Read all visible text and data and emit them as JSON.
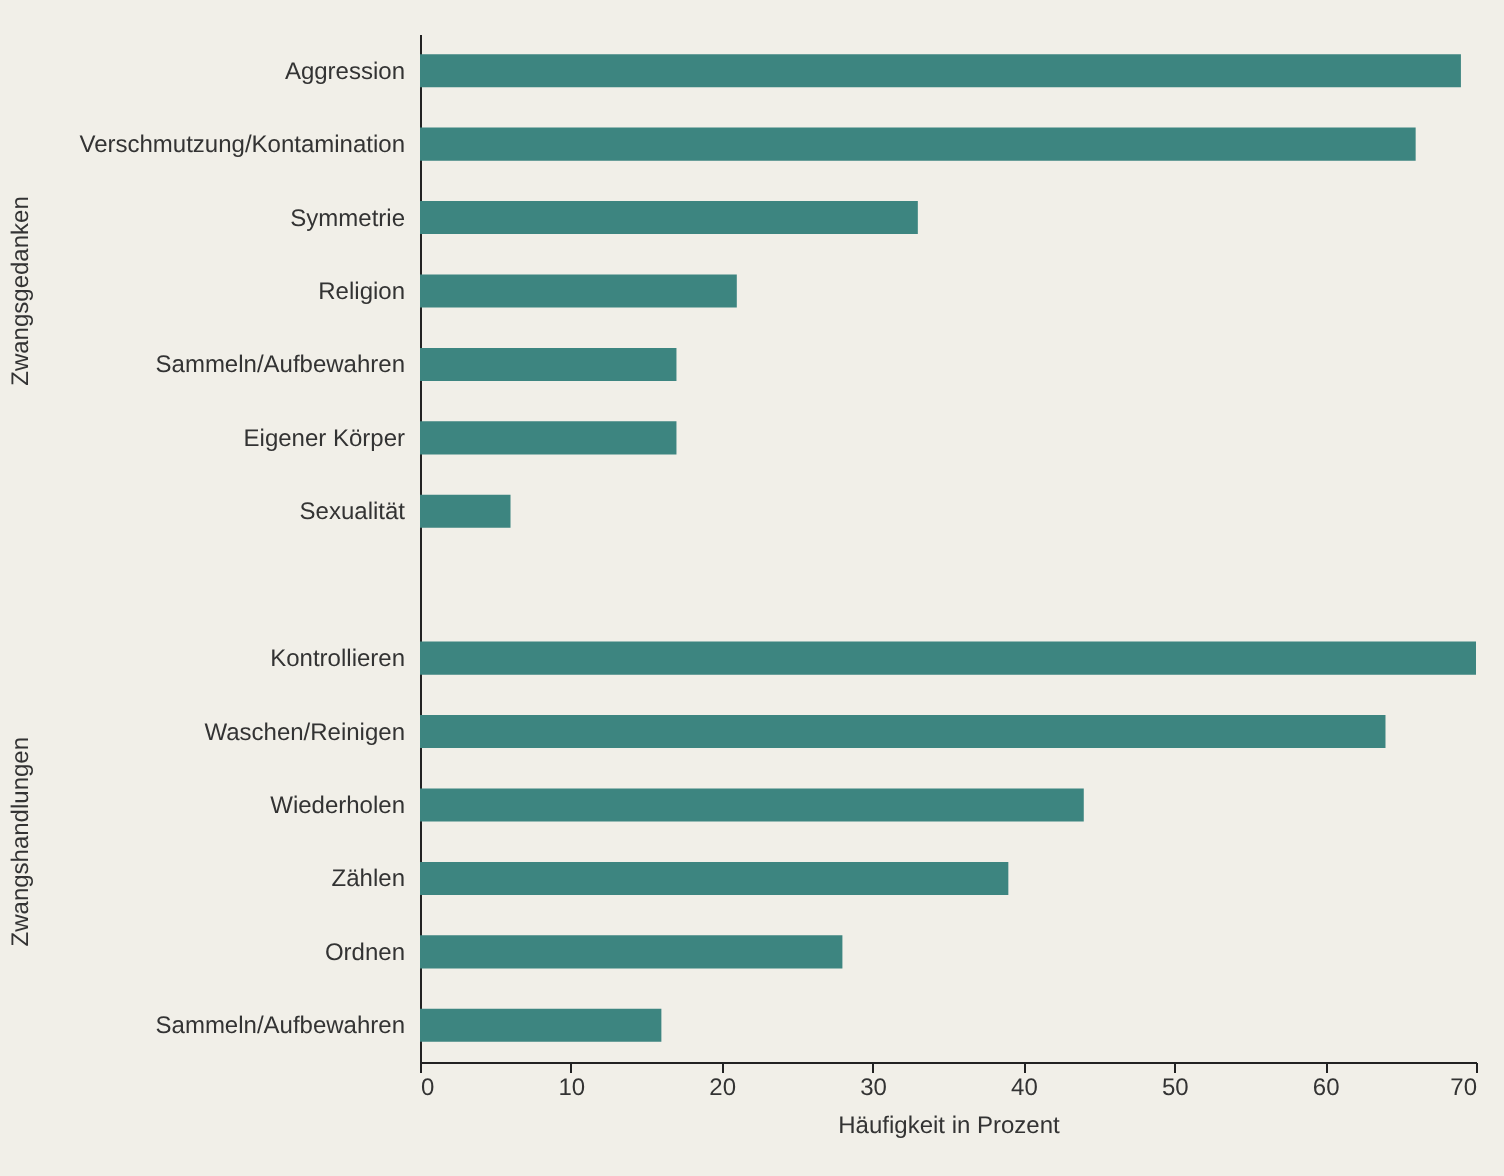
{
  "chart_data": {
    "type": "bar",
    "orientation": "horizontal",
    "xlabel": "Häufigkeit in Prozent",
    "categories": [
      "Aggression",
      "Verschmutzung/Kontamination",
      "Symmetrie",
      "Religion",
      "Sammeln/Aufbewahren",
      "Eigener Körper",
      "Sexualität",
      null,
      "Kontrollieren",
      "Waschen/Reinigen",
      "Wiederholen",
      "Zählen",
      "Ordnen",
      "Sammeln/Aufbewahren"
    ],
    "values": [
      69,
      66,
      33,
      21,
      17,
      17,
      6,
      null,
      70,
      64,
      44,
      39,
      28,
      16
    ],
    "color": "#3d8580",
    "xlim": [
      0,
      70
    ],
    "xticks": [
      0,
      10,
      20,
      30,
      40,
      50,
      60,
      70
    ],
    "grid": false,
    "annotations": [
      "Zwangsgedanken",
      "Zwangshandlungen"
    ]
  }
}
